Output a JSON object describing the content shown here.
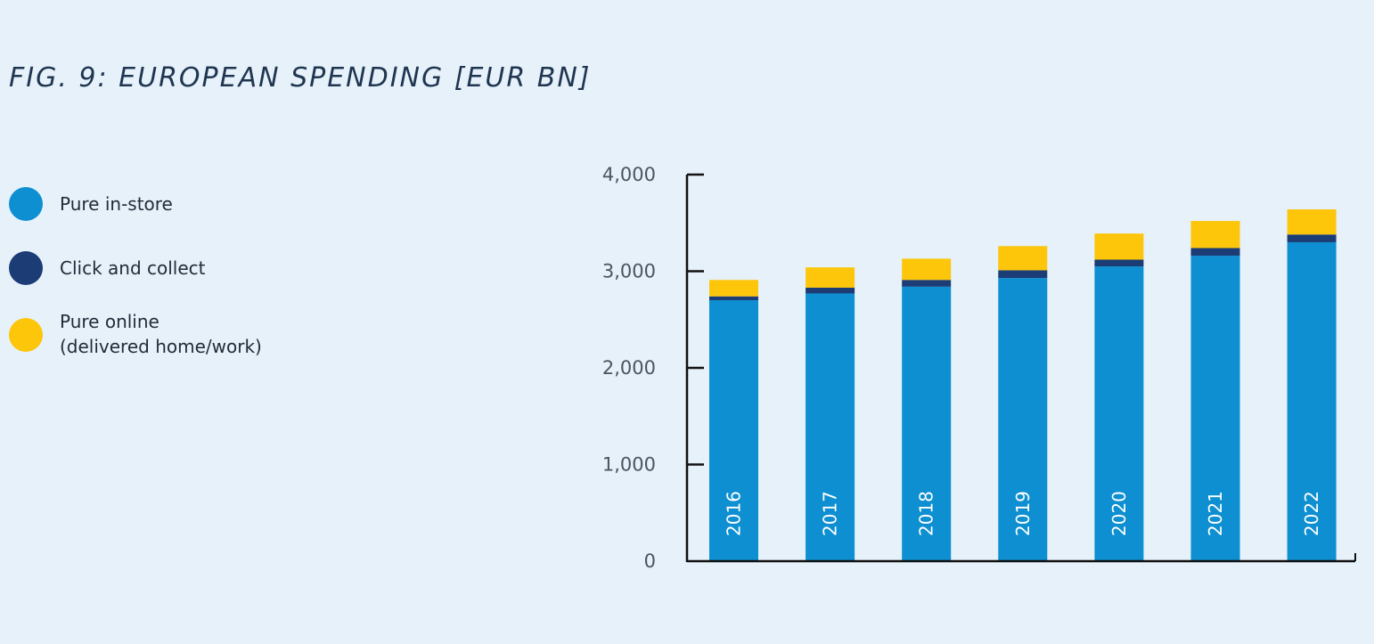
{
  "title": "FIG. 9: EUROPEAN SPENDING [EUR BN]",
  "legend": [
    {
      "label": "Pure in-store",
      "color": "#0d8fd1"
    },
    {
      "label": "Click and collect",
      "color": "#1b3c74"
    },
    {
      "label": "Pure online\n(delivered home/work)",
      "color": "#fdc60a"
    }
  ],
  "chart_data": {
    "type": "bar",
    "stacked": true,
    "categories": [
      "2016",
      "2017",
      "2018",
      "2019",
      "2020",
      "2021",
      "2022"
    ],
    "series": [
      {
        "name": "Pure in-store",
        "color": "#0d8fd1",
        "values": [
          2700,
          2770,
          2840,
          2930,
          3050,
          3160,
          3300
        ]
      },
      {
        "name": "Click and collect",
        "color": "#1b3c74",
        "values": [
          40,
          60,
          70,
          80,
          70,
          80,
          80
        ]
      },
      {
        "name": "Pure online\n(delivered home/work)",
        "color": "#fdc60a",
        "values": [
          170,
          210,
          220,
          250,
          270,
          280,
          260
        ]
      }
    ],
    "yticks": [
      0,
      1000,
      2000,
      3000,
      4000
    ],
    "ytick_labels": [
      "0",
      "1,000",
      "2,000",
      "3,000",
      "4,000"
    ],
    "ylim": [
      0,
      4100
    ],
    "grid": false,
    "legend_position": "left"
  }
}
